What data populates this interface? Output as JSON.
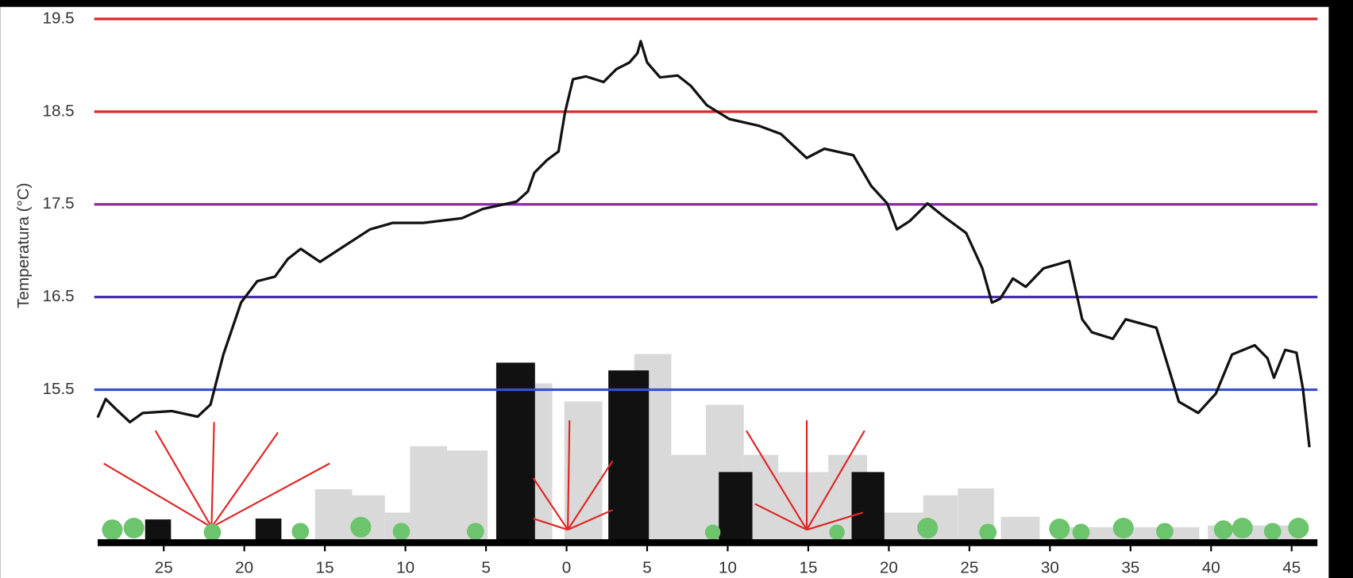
{
  "chart_data": {
    "type": "line",
    "y_label": "Temperatura (°C)",
    "xlim": [
      -29.1,
      46.6
    ],
    "ylim": [
      13.85,
      19.7
    ],
    "xticks": [
      {
        "value": -25,
        "label": "25"
      },
      {
        "value": -20,
        "label": "20"
      },
      {
        "value": -15,
        "label": "15"
      },
      {
        "value": -10,
        "label": "10"
      },
      {
        "value": -5,
        "label": "5"
      },
      0,
      5,
      10,
      15,
      20,
      25,
      30,
      35,
      40,
      45
    ],
    "yticks": [
      15.5,
      16.5,
      17.5,
      18.5,
      19.5
    ],
    "ytick_colors": [
      "#3a4fd0",
      "#4a30b0",
      "#8a2aa8",
      "#e02626",
      "#e02626"
    ],
    "grid": true,
    "series": [
      {
        "color": "#111111",
        "x": [
          -29.1,
          -28.6,
          -27.9,
          -27.1,
          -26.3,
          -24.5,
          -22.9,
          -22.1,
          -21.3,
          -20.2,
          -19.2,
          -18.1,
          -17.3,
          -16.5,
          -15.3,
          -13.8,
          -12.2,
          -10.8,
          -8.9,
          -6.5,
          -5.2,
          -3.1,
          -2.4,
          -2.0,
          -1.2,
          -0.5,
          -0.1,
          0.4,
          1.2,
          2.3,
          3.1,
          3.9,
          4.4,
          4.6,
          5.0,
          5.8,
          6.9,
          7.7,
          8.7,
          10.1,
          11.9,
          13.3,
          14.9,
          16.0,
          17.8,
          18.9,
          19.9,
          20.5,
          21.3,
          22.4,
          23.4,
          24.8,
          25.8,
          26.4,
          26.9,
          27.7,
          28.5,
          29.6,
          31.2,
          32.0,
          32.6,
          33.9,
          34.7,
          36.6,
          38.0,
          39.2,
          40.3,
          41.3,
          42.7,
          43.5,
          43.9,
          44.6,
          45.3,
          45.7,
          46.1
        ],
        "values": [
          15.2,
          15.4,
          15.28,
          15.15,
          15.25,
          15.27,
          15.21,
          15.34,
          15.88,
          16.44,
          16.67,
          16.72,
          16.91,
          17.02,
          16.88,
          17.05,
          17.23,
          17.3,
          17.3,
          17.35,
          17.45,
          17.53,
          17.64,
          17.84,
          17.98,
          18.07,
          18.49,
          18.85,
          18.88,
          18.82,
          18.96,
          19.03,
          19.13,
          19.26,
          19.03,
          18.87,
          18.89,
          18.78,
          18.57,
          18.42,
          18.35,
          18.26,
          18.0,
          18.1,
          18.03,
          17.7,
          17.51,
          17.23,
          17.32,
          17.51,
          17.37,
          17.19,
          16.81,
          16.44,
          16.48,
          16.7,
          16.61,
          16.81,
          16.89,
          16.26,
          16.12,
          16.05,
          16.26,
          16.17,
          15.37,
          15.25,
          15.46,
          15.88,
          15.98,
          15.84,
          15.63,
          15.93,
          15.9,
          15.51,
          14.88
        ]
      }
    ]
  }
}
